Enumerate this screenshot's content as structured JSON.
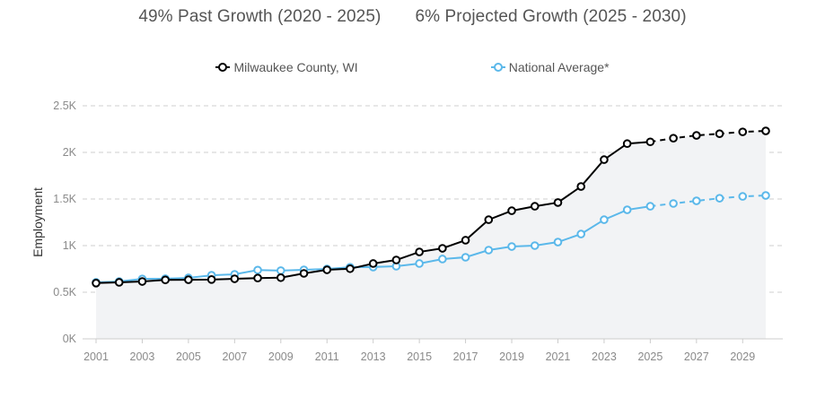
{
  "headline": {
    "past_growth": "49% Past Growth (2020 - 2025)",
    "projected_growth": "6% Projected Growth (2025 - 2030)"
  },
  "chart_data": {
    "type": "line",
    "title": "",
    "xlabel": "",
    "ylabel": "Employment",
    "ylim": [
      0,
      2500
    ],
    "yticks": [
      {
        "value": 0,
        "label": "0K"
      },
      {
        "value": 500,
        "label": "0.5K"
      },
      {
        "value": 1000,
        "label": "1K"
      },
      {
        "value": 1500,
        "label": "1.5K"
      },
      {
        "value": 2000,
        "label": "2K"
      },
      {
        "value": 2500,
        "label": "2.5K"
      }
    ],
    "xticks": [
      "2001",
      "2003",
      "2005",
      "2007",
      "2009",
      "2011",
      "2013",
      "2015",
      "2017",
      "2019",
      "2021",
      "2023",
      "2025",
      "2027",
      "2029"
    ],
    "x": [
      2001,
      2002,
      2003,
      2004,
      2005,
      2006,
      2007,
      2008,
      2009,
      2010,
      2011,
      2012,
      2013,
      2014,
      2015,
      2016,
      2017,
      2018,
      2019,
      2020,
      2021,
      2022,
      2023,
      2024,
      2025,
      2026,
      2027,
      2028,
      2029,
      2030
    ],
    "projection_start": 2025,
    "grid": true,
    "legend_position": "top-center",
    "series": [
      {
        "name": "Milwaukee County, WI",
        "color": "#000000",
        "values": [
          598,
          606,
          615,
          632,
          634,
          636,
          644,
          652,
          656,
          702,
          740,
          752,
          808,
          846,
          932,
          971,
          1058,
          1278,
          1374,
          1422,
          1462,
          1634,
          1922,
          2094,
          2113,
          2152,
          2182,
          2200,
          2220,
          2230
        ]
      },
      {
        "name": "National Average*",
        "color": "#5bb8ea",
        "values": [
          606,
          615,
          643,
          645,
          654,
          682,
          692,
          738,
          732,
          740,
          750,
          768,
          770,
          779,
          808,
          856,
          875,
          952,
          990,
          1000,
          1038,
          1124,
          1278,
          1384,
          1422,
          1452,
          1480,
          1508,
          1528,
          1538
        ]
      }
    ],
    "fill_color": "#f2f3f5"
  }
}
